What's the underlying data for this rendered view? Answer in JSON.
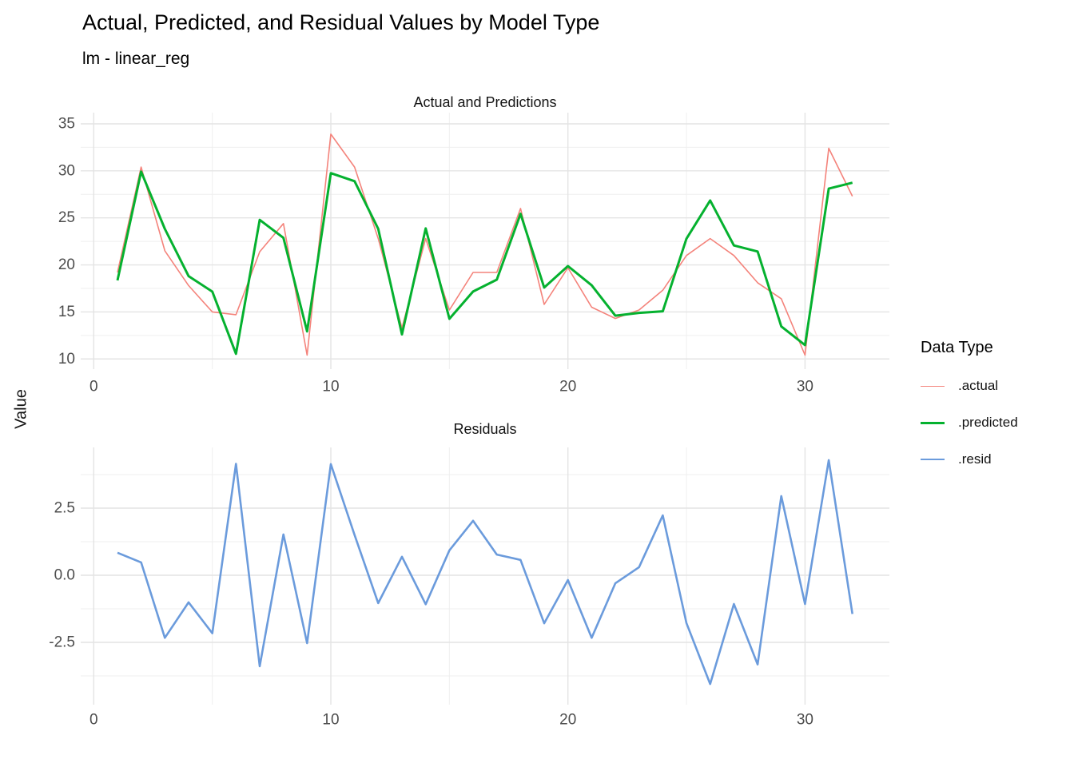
{
  "title": "Actual, Predicted, and Residual Values by Model Type",
  "subtitle": "lm - linear_reg",
  "y_axis_title": "Value",
  "legend": {
    "title": "Data Type",
    "items": [
      {
        "label": ".actual",
        "color": "#F4837B",
        "width": 1.6
      },
      {
        "label": ".predicted",
        "color": "#05B12F",
        "width": 3.0
      },
      {
        "label": ".resid",
        "color": "#6B9BDC",
        "width": 2.6
      }
    ]
  },
  "colors": {
    "grid_major": "#E4E4E4",
    "grid_minor": "#EFEFEF",
    "axis_text": "#4D4D4D"
  },
  "chart_data": [
    {
      "type": "line",
      "title": "Actual and Predictions",
      "x": [
        1,
        2,
        3,
        4,
        5,
        6,
        7,
        8,
        9,
        10,
        11,
        12,
        13,
        14,
        15,
        16,
        17,
        18,
        19,
        20,
        21,
        22,
        23,
        24,
        25,
        26,
        27,
        28,
        29,
        30,
        31,
        32
      ],
      "series": [
        {
          "name": ".actual",
          "color": "#F4837B",
          "width": 1.6,
          "values": [
            19.2,
            30.4,
            21.5,
            17.8,
            15.0,
            14.7,
            21.4,
            24.4,
            10.4,
            33.9,
            30.4,
            22.8,
            13.3,
            22.8,
            15.2,
            19.2,
            19.2,
            26.0,
            15.8,
            19.7,
            15.5,
            14.3,
            15.2,
            17.3,
            21.0,
            22.8,
            21.0,
            18.1,
            16.4,
            10.4,
            32.4,
            27.3
          ]
        },
        {
          "name": ".predicted",
          "color": "#05B12F",
          "width": 3.0,
          "values": [
            18.36,
            29.92,
            23.83,
            18.81,
            17.16,
            10.55,
            24.79,
            22.88,
            12.93,
            29.76,
            28.9,
            23.84,
            12.61,
            23.88,
            14.27,
            17.17,
            18.43,
            25.43,
            17.59,
            19.88,
            17.83,
            14.6,
            14.9,
            15.07,
            22.78,
            26.85,
            22.07,
            21.42,
            13.45,
            11.47,
            28.11,
            28.74
          ]
        }
      ],
      "xlabel": "",
      "ylabel": "Value",
      "xlim": [
        -0.55,
        33.55
      ],
      "ylim": [
        8.85,
        36.2
      ],
      "x_breaks": [
        0,
        10,
        20,
        30
      ],
      "x_minor": [
        5,
        15,
        25
      ],
      "y_breaks": [
        10,
        15,
        20,
        25,
        30,
        35
      ],
      "y_labels": [
        "10",
        "15",
        "20",
        "25",
        "30",
        "35"
      ],
      "y_minor": [
        12.5,
        17.5,
        22.5,
        27.5,
        32.5
      ],
      "grid": true,
      "legend_position": "right"
    },
    {
      "type": "line",
      "title": "Residuals",
      "x": [
        1,
        2,
        3,
        4,
        5,
        6,
        7,
        8,
        9,
        10,
        11,
        12,
        13,
        14,
        15,
        16,
        17,
        18,
        19,
        20,
        21,
        22,
        23,
        24,
        25,
        26,
        27,
        28,
        29,
        30,
        31,
        32
      ],
      "series": [
        {
          "name": ".resid",
          "color": "#6B9BDC",
          "width": 2.6,
          "values": [
            0.84,
            0.48,
            -2.33,
            -1.01,
            -2.16,
            4.15,
            -3.39,
            1.52,
            -2.53,
            4.14,
            1.5,
            -1.04,
            0.69,
            -1.08,
            0.93,
            2.03,
            0.77,
            0.57,
            -1.79,
            -0.18,
            -2.33,
            -0.3,
            0.3,
            2.23,
            -1.78,
            -4.05,
            -1.07,
            -3.32,
            2.95,
            -1.07,
            4.29,
            -1.44
          ]
        }
      ],
      "xlabel": "",
      "ylabel": "",
      "xlim": [
        -0.55,
        33.55
      ],
      "ylim": [
        -4.82,
        4.76
      ],
      "x_breaks": [
        0,
        10,
        20,
        30
      ],
      "x_minor": [
        5,
        15,
        25
      ],
      "y_breaks": [
        2.5,
        0.0,
        -2.5
      ],
      "y_labels": [
        "2.5",
        "0.0",
        "-2.5"
      ],
      "y_minor": [
        3.75,
        1.25,
        -1.25,
        -3.75
      ],
      "grid": true,
      "legend_position": "none"
    }
  ]
}
